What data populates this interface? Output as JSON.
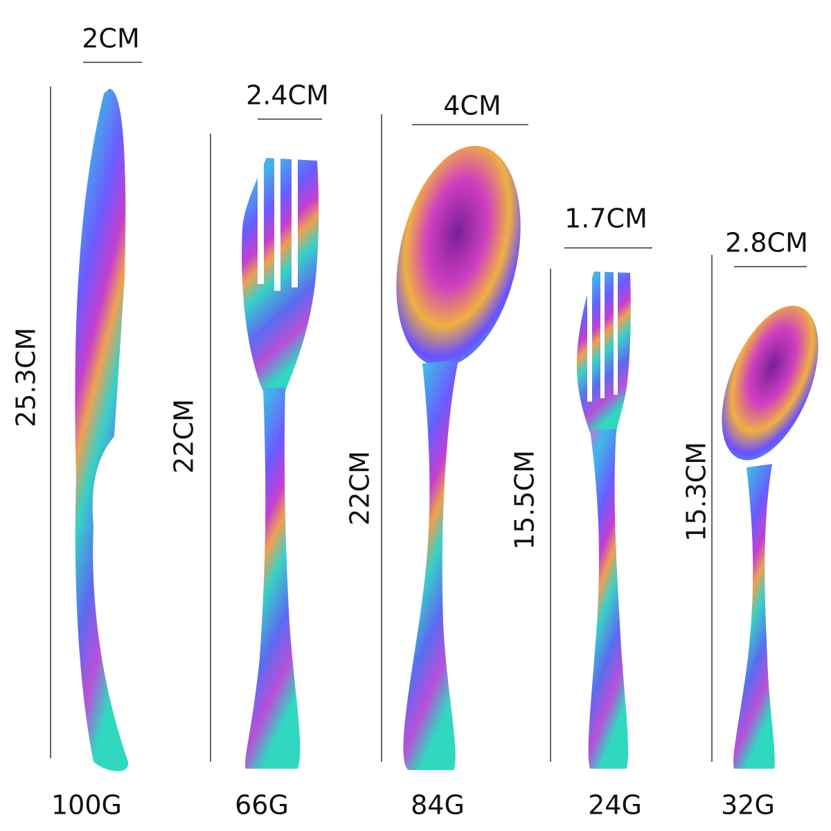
{
  "items": [
    {
      "width": "2CM",
      "length": "25.3CM",
      "weight": "100G"
    },
    {
      "width": "2.4CM",
      "length": "22CM",
      "weight": "66G"
    },
    {
      "width": "4CM",
      "length": "22CM",
      "weight": "84G"
    },
    {
      "width": "1.7CM",
      "length": "15.5CM",
      "weight": "24G"
    },
    {
      "width": "2.8CM",
      "length": "15.3CM",
      "weight": "32G"
    }
  ]
}
